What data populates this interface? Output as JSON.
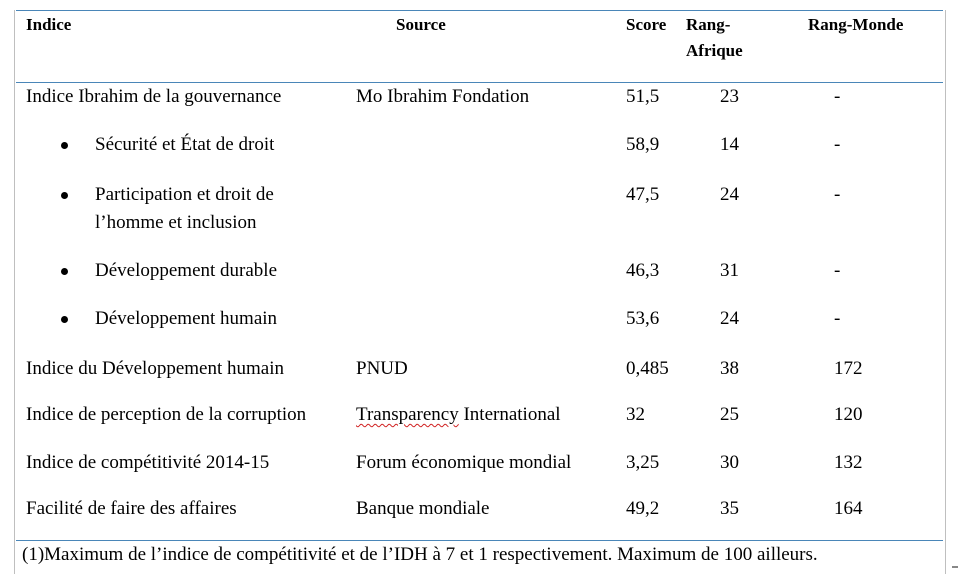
{
  "table": {
    "headers": {
      "indice": "Indice",
      "source": "Source",
      "score": "Score",
      "rang_afrique_line1": "Rang-",
      "rang_afrique_line2": "Afrique",
      "rang_monde": "Rang-Monde"
    },
    "rows": [
      {
        "indice": "Indice Ibrahim de la gouvernance",
        "source": "Mo Ibrahim Fondation",
        "score": "51,5",
        "rang_afrique": "23",
        "rang_monde": "-"
      },
      {
        "indice": "Sécurité et État de droit",
        "source": "",
        "score": "58,9",
        "rang_afrique": "14",
        "rang_monde": "-"
      },
      {
        "indice_line1": "Participation et droit de",
        "indice_line2": "l’homme et inclusion",
        "source": "",
        "score": "47,5",
        "rang_afrique": "24",
        "rang_monde": "-"
      },
      {
        "indice": "Développement durable",
        "source": "",
        "score": "46,3",
        "rang_afrique": "31",
        "rang_monde": "-"
      },
      {
        "indice": "Développement humain",
        "source": "",
        "score": "53,6",
        "rang_afrique": "24",
        "rang_monde": "-"
      },
      {
        "indice": "Indice du Développement humain",
        "source": "PNUD",
        "score": "0,485",
        "rang_afrique": "38",
        "rang_monde": "172"
      },
      {
        "indice": "Indice de perception de la corruption",
        "source_part1": "Transparency",
        "source_part2": " International",
        "score": "32",
        "rang_afrique": "25",
        "rang_monde": "120"
      },
      {
        "indice": "Indice de compétitivité 2014-15",
        "source": "Forum économique mondial",
        "score": "3,25",
        "rang_afrique": "30",
        "rang_monde": "132"
      },
      {
        "indice": "Facilité de faire des affaires",
        "source": "Banque mondiale",
        "score": "49,2",
        "rang_afrique": "35",
        "rang_monde": "164"
      }
    ]
  },
  "footnote": "(1)Maximum de l’indice de compétitivité et de l’IDH à 7 et 1 respectivement. Maximum de 100 ailleurs.",
  "colors": {
    "rule": "#4a86b8",
    "spellcheck": "#d02020"
  }
}
